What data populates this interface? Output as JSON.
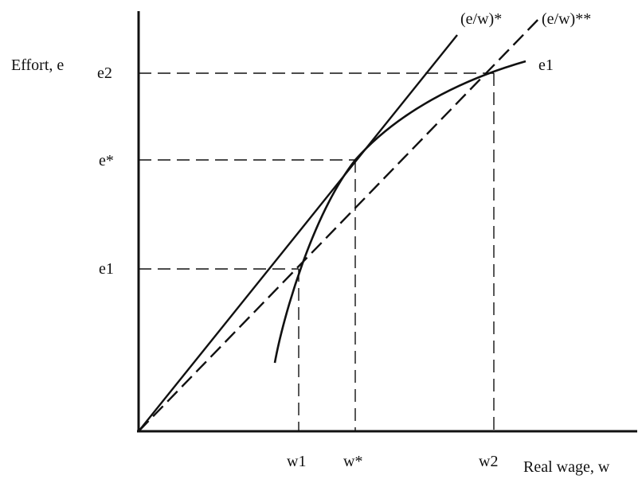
{
  "labels": {
    "y_axis": "Effort, e",
    "x_axis": "Real wage, w",
    "e2": "e2",
    "e_star": "e*",
    "e1": "e1",
    "w1": "w1",
    "w_star": "w*",
    "w2": "w2",
    "ray_tangent": "(e/w)*",
    "ray_secant": "(e/w)**",
    "curve": "e1"
  },
  "colors": {
    "ink": "#111111",
    "background": "#ffffff"
  }
}
